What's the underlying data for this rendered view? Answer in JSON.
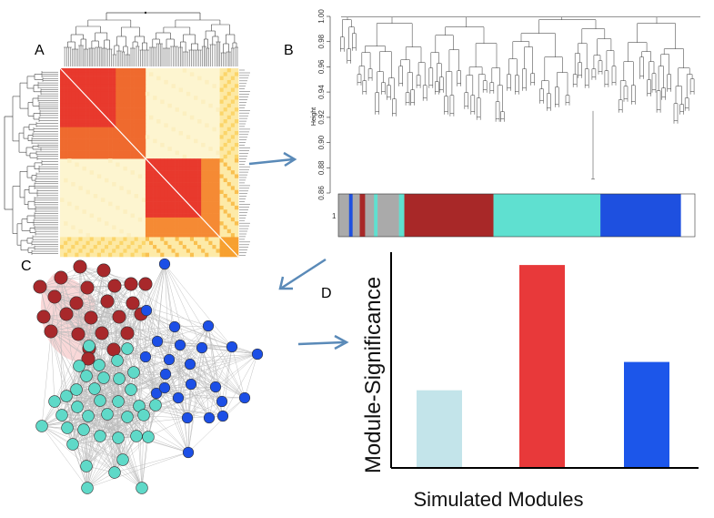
{
  "panels": {
    "a_label": "A",
    "b_label": "B",
    "c_label": "C",
    "d_label": "D"
  },
  "dendrogram": {
    "ylabel": "Height",
    "ticks": [
      "1.00",
      "0.98",
      "0.96",
      "0.94",
      "0.92",
      "0.90",
      "0.88",
      "0.86"
    ],
    "tick_values": [
      1.0,
      0.98,
      0.96,
      0.94,
      0.92,
      0.9,
      0.88,
      0.86
    ],
    "ylim": [
      0.86,
      1.0
    ],
    "module_bar_label": "1",
    "module_colors": [
      "#aaaaaa",
      "#1e50e0",
      "#aaaaaa",
      "#a82828",
      "#aaaaaa",
      "#5fe0d0",
      "#aaaaaa",
      "#5fe0d0",
      "#a82828",
      "#5fe0d0",
      "#1e50e0"
    ],
    "module_widths": [
      0.03,
      0.01,
      0.02,
      0.015,
      0.025,
      0.01,
      0.06,
      0.015,
      0.25,
      0.3,
      0.225
    ]
  },
  "heatmap": {
    "colors": {
      "high": "#e8392d",
      "mid": "#f7a030",
      "low": "#fdf5d0",
      "diag": "#ffffff"
    }
  },
  "network": {
    "colors": {
      "red": "#a8282b",
      "turquoise": "#5fd9c8",
      "blue": "#1c4fe6",
      "edge": "#bbbbbb"
    }
  },
  "chart_data": {
    "type": "bar",
    "categories": [
      "",
      "",
      ""
    ],
    "values": [
      0.38,
      1.0,
      0.52
    ],
    "colors": [
      "#c3e4ea",
      "#e8393a",
      "#1c56ea"
    ],
    "ylim": [
      0,
      1.05
    ],
    "xlabel": "Simulated Modules",
    "ylabel": "Module-Significance",
    "title": ""
  },
  "arrows": {
    "color": "#5a8ab8"
  }
}
